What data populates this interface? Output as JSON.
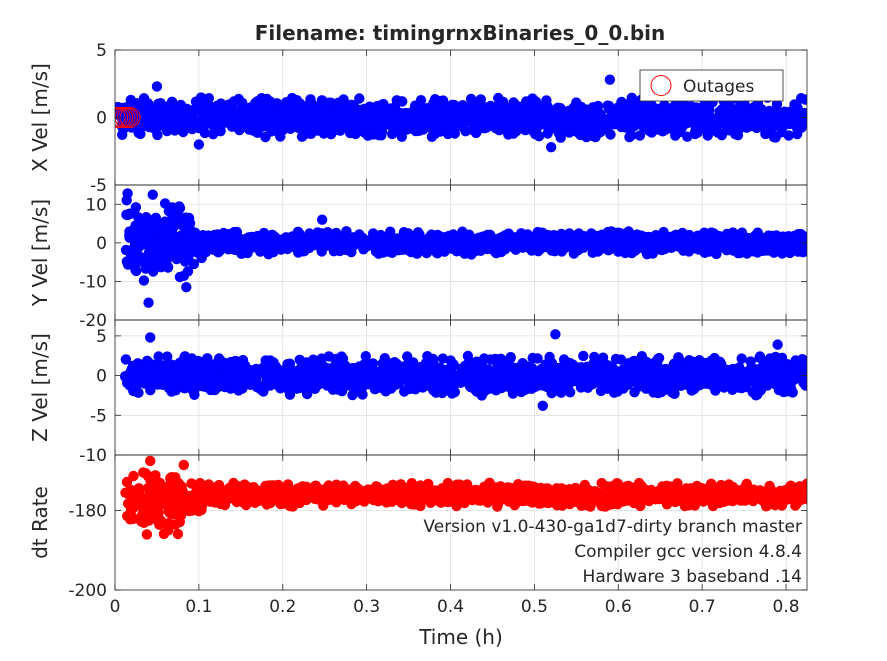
{
  "figure": {
    "title": "Filename: timingrnxBinaries_0_0.bin",
    "xlabel": "Time (h)",
    "annotations": [
      "Version v1.0-430-ga1d7-dirty branch master",
      "Compiler gcc version 4.8.4",
      "Hardware 3 baseband .14"
    ]
  },
  "chart_data": [
    {
      "type": "scatter",
      "ylabel": "X Vel [m/s]",
      "xlim": [
        0,
        0.825
      ],
      "ylim": [
        -5,
        5
      ],
      "xticks": [
        0,
        0.1,
        0.2,
        0.3,
        0.4,
        0.5,
        0.6,
        0.7,
        0.8
      ],
      "yticks": [
        -5,
        0,
        5
      ],
      "xtick_labels_shown": false,
      "grid": true,
      "legend": {
        "placement": "top-right",
        "entries": [
          "Outages"
        ]
      },
      "series": [
        {
          "color": "#0000ff",
          "x_range": [
            0.003,
            0.825
          ],
          "y_band_approx": [
            -1.5,
            1.5
          ],
          "y_extremes": [
            -2.3,
            2.8
          ],
          "points": [
            {
              "x": 0.05,
              "y": 2.3
            },
            {
              "x": 0.59,
              "y": 2.8
            },
            {
              "x": 0.52,
              "y": -2.2
            },
            {
              "x": 0.1,
              "y": -2.0
            }
          ]
        },
        {
          "name": "Outages",
          "color": "#ff0000",
          "marker": "open-circle",
          "x_range": [
            0.0,
            0.018
          ],
          "y": 0
        }
      ]
    },
    {
      "type": "scatter",
      "ylabel": "Y Vel [m/s]",
      "xlim": [
        0,
        0.825
      ],
      "ylim": [
        -20,
        15
      ],
      "xticks": [
        0,
        0.1,
        0.2,
        0.3,
        0.4,
        0.5,
        0.6,
        0.7,
        0.8
      ],
      "yticks": [
        -20,
        -10,
        0,
        10
      ],
      "xtick_labels_shown": false,
      "grid": true,
      "series": [
        {
          "color": "#0000ff",
          "x_range": [
            0.012,
            0.825
          ],
          "y_band_early": [
            -10,
            12
          ],
          "y_band_late": [
            -3,
            3
          ],
          "points": [
            {
              "x": 0.04,
              "y": -15.5
            },
            {
              "x": 0.015,
              "y": 12.8
            },
            {
              "x": 0.045,
              "y": 12.5
            },
            {
              "x": 0.085,
              "y": -11.5
            },
            {
              "x": 0.247,
              "y": 6.0
            }
          ]
        }
      ]
    },
    {
      "type": "scatter",
      "ylabel": "Z Vel [m/s]",
      "xlim": [
        0,
        0.825
      ],
      "ylim": [
        -10,
        7
      ],
      "xticks": [
        0,
        0.1,
        0.2,
        0.3,
        0.4,
        0.5,
        0.6,
        0.7,
        0.8
      ],
      "yticks": [
        -10,
        -5,
        0,
        5
      ],
      "xtick_labels_shown": false,
      "grid": true,
      "series": [
        {
          "color": "#0000ff",
          "x_range": [
            0.012,
            0.825
          ],
          "y_band_approx": [
            -2.5,
            2.5
          ],
          "points": [
            {
              "x": 0.042,
              "y": 4.8
            },
            {
              "x": 0.525,
              "y": 5.2
            },
            {
              "x": 0.51,
              "y": -3.8
            },
            {
              "x": 0.79,
              "y": 3.9
            }
          ]
        }
      ]
    },
    {
      "type": "scatter",
      "ylabel": "dt Rate",
      "xlim": [
        0,
        0.825
      ],
      "ylim": [
        -200,
        -166
      ],
      "xticks": [
        0,
        0.1,
        0.2,
        0.3,
        0.4,
        0.5,
        0.6,
        0.7,
        0.8
      ],
      "xtick_labels": [
        "0",
        "0.1",
        "0.2",
        "0.3",
        "0.4",
        "0.5",
        "0.6",
        "0.7",
        "0.8"
      ],
      "yticks": [
        -200,
        -180
      ],
      "grid": true,
      "series": [
        {
          "color": "#ff0000",
          "x_range": [
            0.012,
            0.825
          ],
          "y_center": -176,
          "y_band_early": [
            -186,
            -169
          ],
          "y_band_late": [
            -179,
            -173
          ],
          "points": [
            {
              "x": 0.042,
              "y": -167.5
            },
            {
              "x": 0.082,
              "y": -168.5
            },
            {
              "x": 0.038,
              "y": -186
            }
          ]
        }
      ]
    }
  ]
}
